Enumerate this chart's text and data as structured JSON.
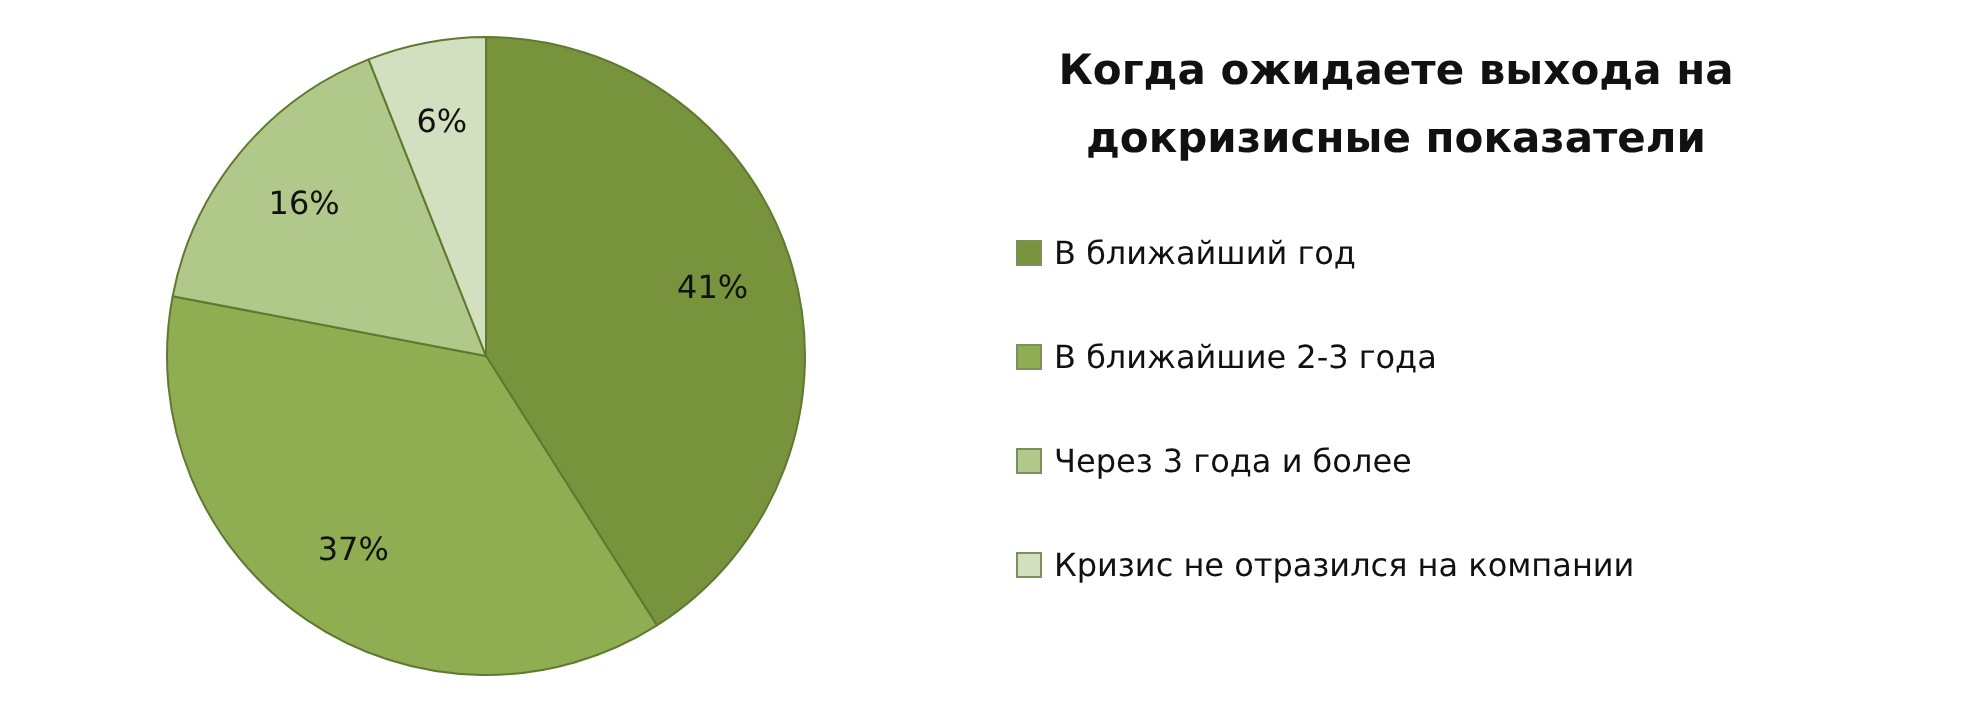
{
  "chart_data": {
    "type": "pie",
    "title": "Когда ожидаете выхода на докризисные показатели",
    "categories": [
      "В ближайший год",
      "В ближайшие 2-3 года",
      "Через 3 года и более",
      "Кризис не отразился на компании"
    ],
    "values": [
      41,
      37,
      16,
      6
    ],
    "colors": [
      "#77933c",
      "#8fae52",
      "#b0c98a",
      "#d3e0bf"
    ],
    "value_labels": [
      "41%",
      "37%",
      "16%",
      "6%"
    ],
    "legend": "right"
  }
}
